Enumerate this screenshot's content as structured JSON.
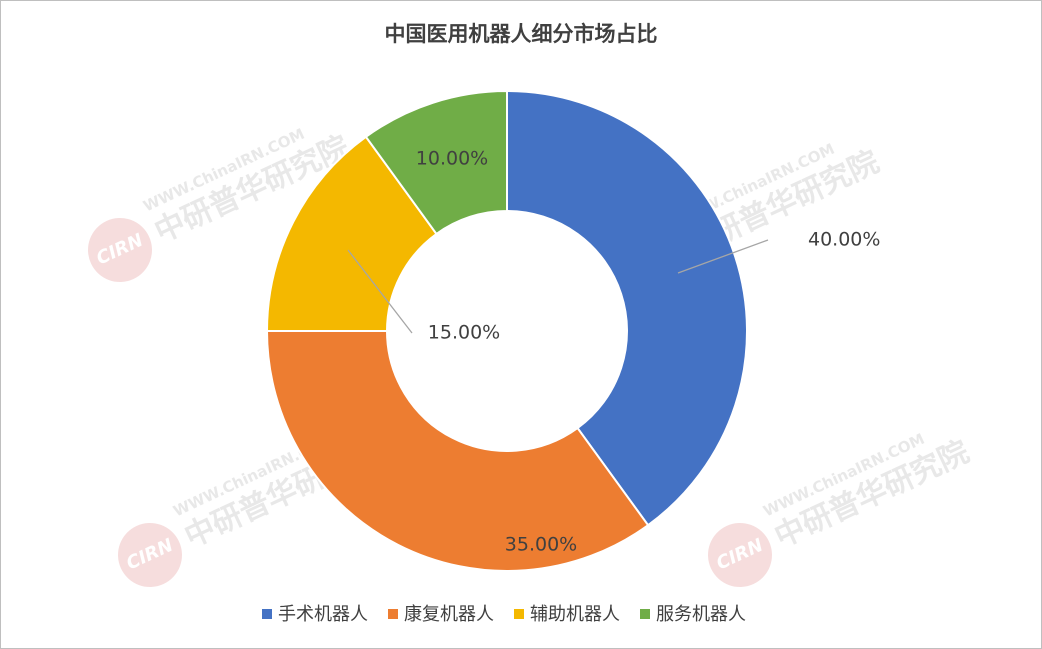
{
  "chart_data": {
    "type": "doughnut",
    "title": "中国医用机器人细分市场占比",
    "categories": [
      "手术机器人",
      "康复机器人",
      "辅助机器人",
      "服务机器人"
    ],
    "values": [
      40,
      35,
      15,
      10
    ],
    "value_labels": [
      "40.00%",
      "35.00%",
      "15.00%",
      "10.00%"
    ],
    "colors": [
      "#4472c4",
      "#ed7d31",
      "#f4b800",
      "#70ad47"
    ],
    "legend": "bottom"
  },
  "watermark": {
    "logo": "CIRN",
    "url": "WWW.ChinaIRN.COM",
    "name": "中研普华研究院"
  }
}
